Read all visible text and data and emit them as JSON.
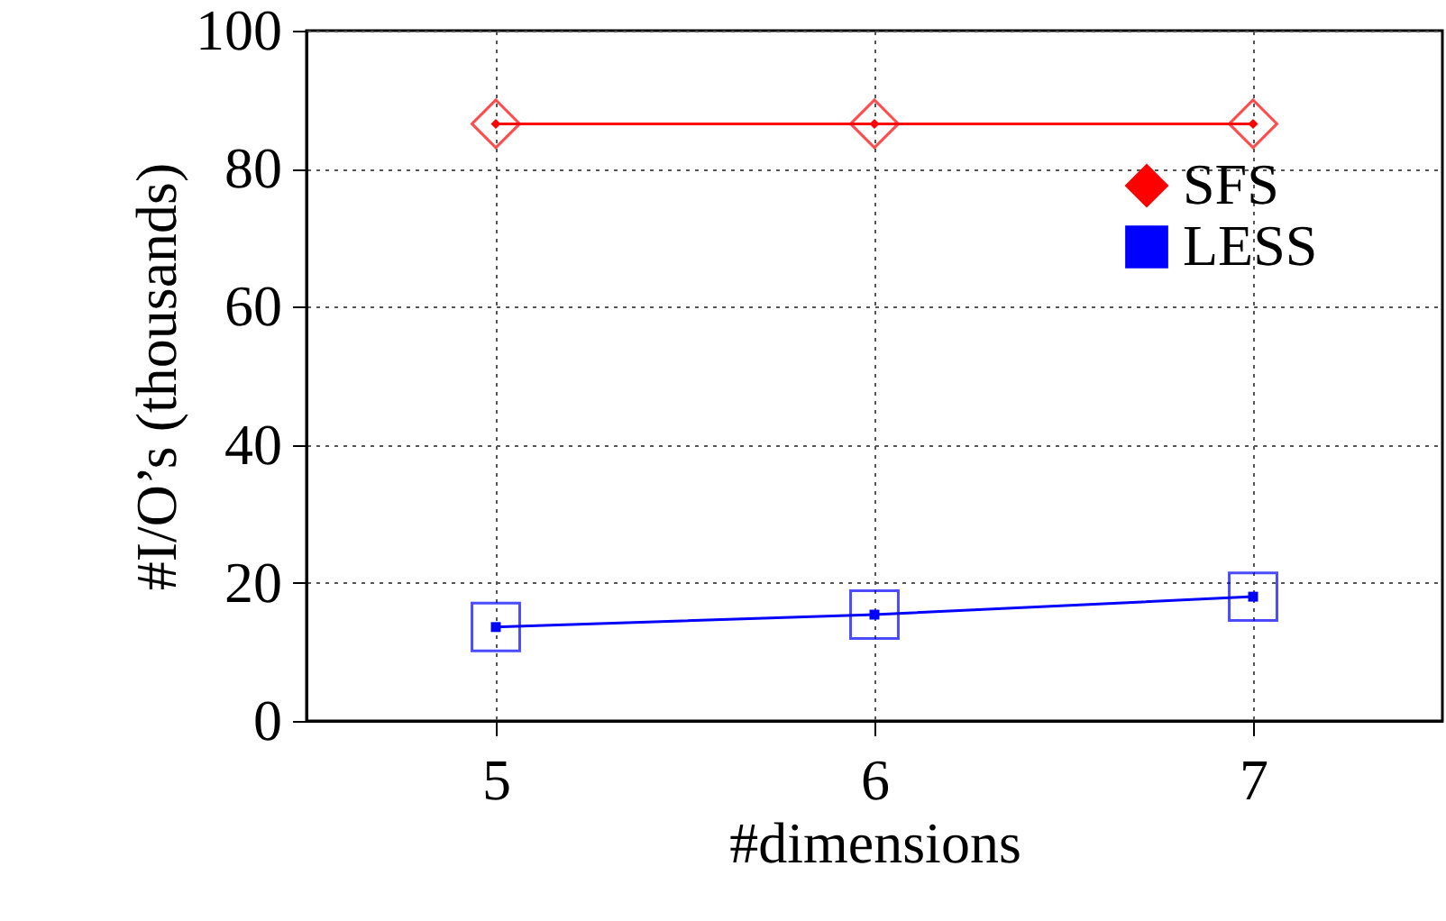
{
  "chart_data": {
    "type": "line",
    "xlabel": "#dimensions",
    "ylabel": "#I/O’s (thousands)",
    "x": [
      5,
      6,
      7
    ],
    "xlim": [
      4.5,
      7.5
    ],
    "xticks": [
      5,
      6,
      7
    ],
    "ylim": [
      0,
      100
    ],
    "yticks": [
      0,
      20,
      40,
      60,
      80,
      100
    ],
    "series": [
      {
        "name": "SFS",
        "color": "#ff0000",
        "values": [
          86.5,
          86.5,
          86.5
        ],
        "marker": "diamond"
      },
      {
        "name": "LESS",
        "color": "#0000ff",
        "values": [
          13.6,
          15.4,
          18.0
        ],
        "marker": "square"
      }
    ],
    "grid": true,
    "legend": "top right",
    "line_style": "solid"
  }
}
